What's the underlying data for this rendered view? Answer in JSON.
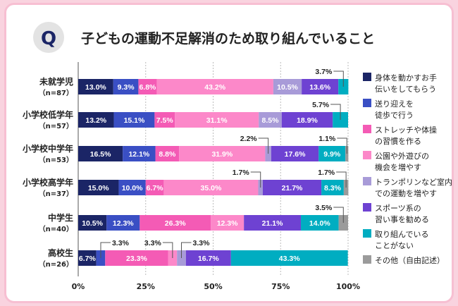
{
  "header": {
    "badge": "Q",
    "title": "子どもの運動不足解消のため取り組んでいること"
  },
  "chart_data": {
    "type": "bar",
    "orientation": "horizontal-stacked-100",
    "title": "子どもの運動不足解消のため取り組んでいること",
    "xlim": [
      0,
      100
    ],
    "xticks": [
      "0%",
      "25%",
      "50%",
      "75%",
      "100%"
    ],
    "grid": true,
    "legend_position": "right",
    "categories": [
      {
        "name": "未就学児",
        "n": "（n=87）"
      },
      {
        "name": "小学校低学年",
        "n": "（n=57）"
      },
      {
        "name": "小学校中学年",
        "n": "（n=53）"
      },
      {
        "name": "小学校高学年",
        "n": "（n=37）"
      },
      {
        "name": "中学生",
        "n": "（n=40）"
      },
      {
        "name": "高校生",
        "n": "（n=26）"
      }
    ],
    "series": [
      {
        "name": "身体を動かすお手伝いをしてもらう",
        "lines": [
          "身体を動かすお手",
          "伝いをしてもらう"
        ],
        "color": "#1b2566",
        "values": [
          13.0,
          13.2,
          16.5,
          15.0,
          10.5,
          6.7
        ]
      },
      {
        "name": "送り迎えを徒歩で行う",
        "lines": [
          "送り迎えを",
          "徒歩で行う"
        ],
        "color": "#3a4fc4",
        "values": [
          9.3,
          15.1,
          12.1,
          10.0,
          12.3,
          3.3
        ]
      },
      {
        "name": "ストレッチや体操の習慣を作る",
        "lines": [
          "ストレッチや体操",
          "の習慣を作る"
        ],
        "color": "#f45bb5",
        "values": [
          6.8,
          7.5,
          8.8,
          6.7,
          26.3,
          23.3
        ]
      },
      {
        "name": "公園や外遊びの機会を増やす",
        "lines": [
          "公園や外遊びの",
          "機会を増やす"
        ],
        "color": "#fc88c9",
        "values": [
          43.2,
          31.1,
          31.9,
          35.0,
          12.3,
          3.3
        ]
      },
      {
        "name": "トランポリンなど室内での運動を増やす",
        "lines": [
          "トランポリンなど室内",
          "での運動を増やす"
        ],
        "color": "#a89bd8",
        "values": [
          10.5,
          8.5,
          2.2,
          1.7,
          0,
          3.3
        ]
      },
      {
        "name": "スポーツ系の習い事を勧める",
        "lines": [
          "スポーツ系の",
          "習い事を勧める"
        ],
        "color": "#6e42d2",
        "values": [
          13.6,
          18.9,
          17.6,
          21.7,
          21.1,
          16.7
        ]
      },
      {
        "name": "取り組んでいることがない",
        "lines": [
          "取り組んでいる",
          "ことがない"
        ],
        "color": "#00adc1",
        "values": [
          3.7,
          5.7,
          9.9,
          8.3,
          14.0,
          43.3
        ]
      },
      {
        "name": "その他（自由記述）",
        "lines": [
          "その他（自由記述）"
        ],
        "color": "#9b9b9b",
        "values": [
          0,
          0,
          1.1,
          1.7,
          3.5,
          0
        ]
      }
    ]
  }
}
